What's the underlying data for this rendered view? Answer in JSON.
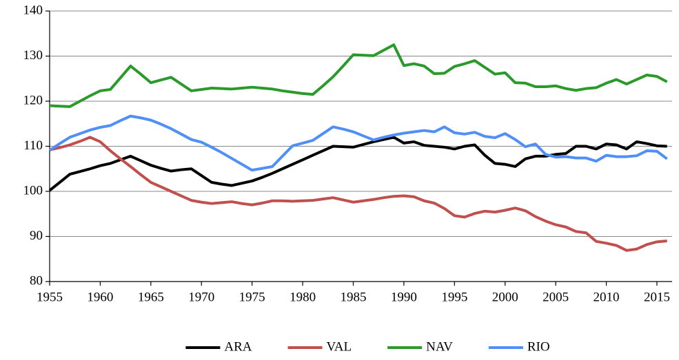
{
  "chart_data": {
    "type": "line",
    "x": [
      1955,
      1956,
      1957,
      1958,
      1959,
      1960,
      1961,
      1962,
      1963,
      1964,
      1965,
      1966,
      1967,
      1968,
      1969,
      1970,
      1971,
      1972,
      1973,
      1974,
      1975,
      1976,
      1977,
      1978,
      1979,
      1980,
      1981,
      1982,
      1983,
      1984,
      1985,
      1986,
      1987,
      1988,
      1989,
      1990,
      1991,
      1992,
      1993,
      1994,
      1995,
      1996,
      1997,
      1998,
      1999,
      2000,
      2001,
      2002,
      2003,
      2004,
      2005,
      2006,
      2007,
      2008,
      2009,
      2010,
      2011,
      2012,
      2013,
      2014,
      2015,
      2016
    ],
    "series": [
      {
        "name": "ARA",
        "color": "#000000",
        "values": [
          100.2,
          102,
          103.8,
          104.4,
          105,
          105.7,
          106.2,
          107,
          107.8,
          106.8,
          105.8,
          105.1,
          104.5,
          104.8,
          105,
          103.5,
          102,
          101.6,
          101.3,
          101.8,
          102.3,
          103.1,
          104,
          105,
          106,
          107,
          108,
          109,
          110,
          109.9,
          109.8,
          110.4,
          111,
          111.5,
          112,
          110.7,
          111,
          110.2,
          110,
          109.8,
          109.4,
          110,
          110.3,
          108,
          106.2,
          106,
          105.5,
          107.2,
          107.8,
          107.8,
          108.2,
          108.4,
          110,
          110,
          109.4,
          110.5,
          110.3,
          109.4,
          111,
          110.6,
          110.1,
          110
        ]
      },
      {
        "name": "VAL",
        "color": "#c0504d",
        "values": [
          109.2,
          109.7,
          110.3,
          111.1,
          112,
          111,
          109,
          107.2,
          105.5,
          103.7,
          102,
          101,
          100,
          99,
          98,
          97.6,
          97.3,
          97.5,
          97.7,
          97.3,
          97,
          97.4,
          97.9,
          97.9,
          97.8,
          97.9,
          98,
          98.3,
          98.6,
          98.1,
          97.6,
          97.9,
          98.2,
          98.6,
          98.9,
          99,
          98.8,
          97.9,
          97.4,
          96.2,
          94.6,
          94.3,
          95.1,
          95.6,
          95.4,
          95.8,
          96.3,
          95.7,
          94.4,
          93.4,
          92.6,
          92.1,
          91.1,
          90.8,
          88.9,
          88.5,
          88,
          86.9,
          87.2,
          88.2,
          88.8,
          89
        ]
      },
      {
        "name": "NAV",
        "color": "#2a9a2a",
        "values": [
          119,
          118.9,
          118.8,
          120,
          121.2,
          122.3,
          122.6,
          125.2,
          127.8,
          126,
          124.1,
          124.7,
          125.3,
          123.8,
          122.3,
          122.6,
          122.9,
          122.8,
          122.7,
          122.9,
          123.1,
          122.9,
          122.7,
          122.3,
          122,
          121.7,
          121.5,
          123.4,
          125.4,
          127.8,
          130.3,
          130.2,
          130.1,
          131.3,
          132.5,
          127.9,
          128.3,
          127.8,
          126.1,
          126.2,
          127.7,
          128.3,
          129,
          127.5,
          126,
          126.3,
          124.1,
          124,
          123.2,
          123.2,
          123.4,
          122.8,
          122.4,
          122.8,
          123,
          124,
          124.8,
          123.8,
          124.8,
          125.8,
          125.5,
          124.3
        ]
      },
      {
        "name": "RIO",
        "color": "#4f8ff7",
        "values": [
          109.1,
          110.6,
          112,
          112.8,
          113.6,
          114.2,
          114.6,
          115.7,
          116.7,
          116.3,
          115.8,
          114.9,
          113.9,
          112.7,
          111.5,
          110.9,
          109.8,
          108.6,
          107.3,
          106,
          104.7,
          105.1,
          105.5,
          107.8,
          110.1,
          110.7,
          111.3,
          112.8,
          114.3,
          113.8,
          113.2,
          112.3,
          111.4,
          112,
          112.5,
          112.9,
          113.2,
          113.5,
          113.2,
          114.3,
          113,
          112.7,
          113.1,
          112.2,
          111.9,
          112.8,
          111.5,
          109.9,
          110.5,
          108.2,
          107.6,
          107.7,
          107.4,
          107.4,
          106.7,
          108,
          107.7,
          107.7,
          107.9,
          109,
          108.9,
          107.2
        ]
      }
    ],
    "xlim": [
      1955,
      2016.5
    ],
    "xticks": [
      1955,
      1960,
      1965,
      1970,
      1975,
      1980,
      1985,
      1990,
      1995,
      2000,
      2005,
      2010,
      2015
    ],
    "ylim": [
      80,
      140
    ],
    "yticks": [
      80,
      90,
      100,
      110,
      120,
      130,
      140
    ],
    "grid": true,
    "legend": "bottom"
  }
}
